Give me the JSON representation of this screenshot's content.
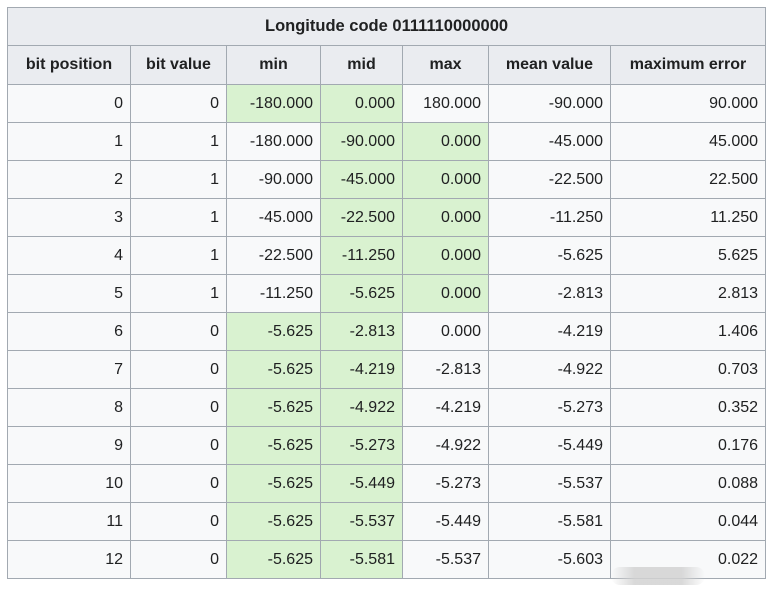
{
  "table": {
    "caption": "Longitude code 0111110000000",
    "headers": [
      "bit position",
      "bit value",
      "min",
      "mid",
      "max",
      "mean value",
      "maximum error"
    ],
    "rows": [
      {
        "cells": [
          "0",
          "0",
          "-180.000",
          "0.000",
          "180.000",
          "-90.000",
          "90.000"
        ],
        "highlight": [
          2,
          3
        ]
      },
      {
        "cells": [
          "1",
          "1",
          "-180.000",
          "-90.000",
          "0.000",
          "-45.000",
          "45.000"
        ],
        "highlight": [
          3,
          4
        ]
      },
      {
        "cells": [
          "2",
          "1",
          "-90.000",
          "-45.000",
          "0.000",
          "-22.500",
          "22.500"
        ],
        "highlight": [
          3,
          4
        ]
      },
      {
        "cells": [
          "3",
          "1",
          "-45.000",
          "-22.500",
          "0.000",
          "-11.250",
          "11.250"
        ],
        "highlight": [
          3,
          4
        ]
      },
      {
        "cells": [
          "4",
          "1",
          "-22.500",
          "-11.250",
          "0.000",
          "-5.625",
          "5.625"
        ],
        "highlight": [
          3,
          4
        ]
      },
      {
        "cells": [
          "5",
          "1",
          "-11.250",
          "-5.625",
          "0.000",
          "-2.813",
          "2.813"
        ],
        "highlight": [
          3,
          4
        ]
      },
      {
        "cells": [
          "6",
          "0",
          "-5.625",
          "-2.813",
          "0.000",
          "-4.219",
          "1.406"
        ],
        "highlight": [
          2,
          3
        ]
      },
      {
        "cells": [
          "7",
          "0",
          "-5.625",
          "-4.219",
          "-2.813",
          "-4.922",
          "0.703"
        ],
        "highlight": [
          2,
          3
        ]
      },
      {
        "cells": [
          "8",
          "0",
          "-5.625",
          "-4.922",
          "-4.219",
          "-5.273",
          "0.352"
        ],
        "highlight": [
          2,
          3
        ]
      },
      {
        "cells": [
          "9",
          "0",
          "-5.625",
          "-5.273",
          "-4.922",
          "-5.449",
          "0.176"
        ],
        "highlight": [
          2,
          3
        ]
      },
      {
        "cells": [
          "10",
          "0",
          "-5.625",
          "-5.449",
          "-5.273",
          "-5.537",
          "0.088"
        ],
        "highlight": [
          2,
          3
        ]
      },
      {
        "cells": [
          "11",
          "0",
          "-5.625",
          "-5.537",
          "-5.449",
          "-5.581",
          "0.044"
        ],
        "highlight": [
          2,
          3
        ]
      },
      {
        "cells": [
          "12",
          "0",
          "-5.625",
          "-5.581",
          "-5.537",
          "-5.603",
          "0.022"
        ],
        "highlight": [
          2,
          3
        ]
      }
    ]
  },
  "colors": {
    "highlight": "#d9f2d0",
    "header_bg": "#eaecf0",
    "cell_bg": "#f8f9fa",
    "border": "#a2a9b1"
  }
}
